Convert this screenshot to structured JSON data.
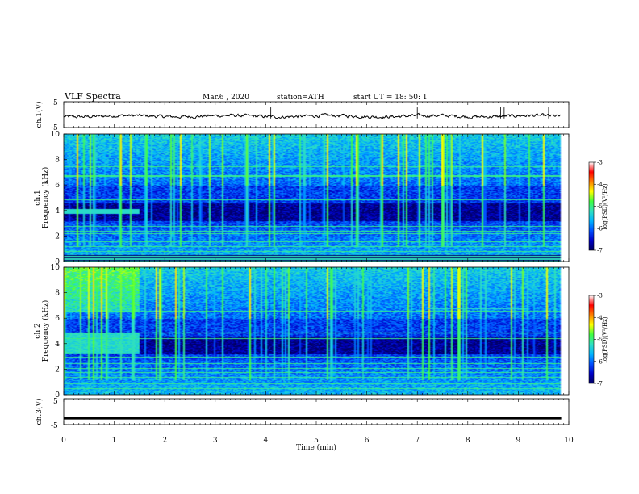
{
  "header": {
    "title": "VLF  Spectra",
    "date": "Mar.6  , 2020",
    "station": "station=ATH",
    "start": "start  UT  =    18: 50: 1"
  },
  "colors": {
    "colormap": [
      "#000060",
      "#0000c8",
      "#0050ff",
      "#00b4ff",
      "#30e0c0",
      "#40ff40",
      "#ffff00",
      "#ff8000",
      "#ff0000",
      "#ffffff"
    ],
    "waveform": "#000000"
  },
  "chart_data": [
    {
      "type": "line",
      "panel": "ch1-waveform",
      "ylabel": "ch.1(V)",
      "yticks": [
        "5",
        "-5"
      ],
      "ylim": [
        -5,
        5
      ],
      "xlim": [
        0,
        10
      ],
      "description_values": {
        "mean_level": 0,
        "noise_amplitude": 0.8,
        "spike_times_min": [
          4.1,
          7.0,
          8.65,
          8.72,
          9.6
        ]
      }
    },
    {
      "type": "heatmap",
      "panel": "ch1-spectrogram",
      "ylabel": "ch.1\nFrequency  (kHz)",
      "ylabel_lines": [
        "ch.1",
        "Frequency  (kHz)"
      ],
      "yticks": [
        "10",
        "8",
        "6",
        "4",
        "2",
        "0"
      ],
      "ylim": [
        0,
        10
      ],
      "xlim": [
        0,
        10
      ],
      "data_end_min": 9.85,
      "colorbar": {
        "label": "log(PSD)(V²/Hz)",
        "ticks": [
          "-3",
          "-4",
          "-5",
          "-6",
          "-7"
        ],
        "range": [
          -7,
          -3
        ]
      },
      "features": {
        "tone_lines_khz": [
          0.3,
          0.8,
          1.2,
          1.6,
          2.2,
          2.4,
          2.8,
          4.9,
          6.7,
          6.8,
          7.5
        ],
        "early_band_khz": [
          3.8,
          4.1
        ],
        "early_band_end_min": 1.5,
        "quiet_band_khz": [
          3.4,
          4.4
        ]
      }
    },
    {
      "type": "heatmap",
      "panel": "ch2-spectrogram",
      "ylabel": "ch.2\nFrequency  (kHz)",
      "ylabel_lines": [
        "ch.2",
        "Frequency  (kHz)"
      ],
      "yticks": [
        "10",
        "8",
        "6",
        "4",
        "2",
        "0"
      ],
      "ylim": [
        0,
        10
      ],
      "xlim": [
        0,
        10
      ],
      "data_end_min": 9.85,
      "colorbar": {
        "label": "log(PSD)(V²/Hz)",
        "ticks": [
          "-3",
          "-4",
          "-5",
          "-6",
          "-7"
        ],
        "range": [
          -7,
          -3
        ]
      },
      "features": {
        "tone_lines_khz": [
          0.5,
          0.9,
          1.4,
          1.8,
          2.1,
          2.5,
          3.0,
          4.4,
          4.9,
          6.6
        ],
        "early_band_khz": [
          3.3,
          4.8
        ],
        "early_band_end_min": 1.5,
        "tone_segment": {
          "khz": 6.8,
          "start_min": 7.2,
          "end_min": 9.2
        }
      }
    },
    {
      "type": "line",
      "panel": "ch3-waveform",
      "ylabel": "ch.3(V)",
      "yticks": [
        "5",
        "-5"
      ],
      "ylim": [
        -5,
        5
      ],
      "xlim": [
        0,
        10
      ],
      "xlabel": "Time  (min)",
      "xticks": [
        "0",
        "1",
        "2",
        "3",
        "4",
        "5",
        "6",
        "7",
        "8",
        "9",
        "10"
      ],
      "description_values": {
        "constant_level": -2.5
      }
    }
  ]
}
